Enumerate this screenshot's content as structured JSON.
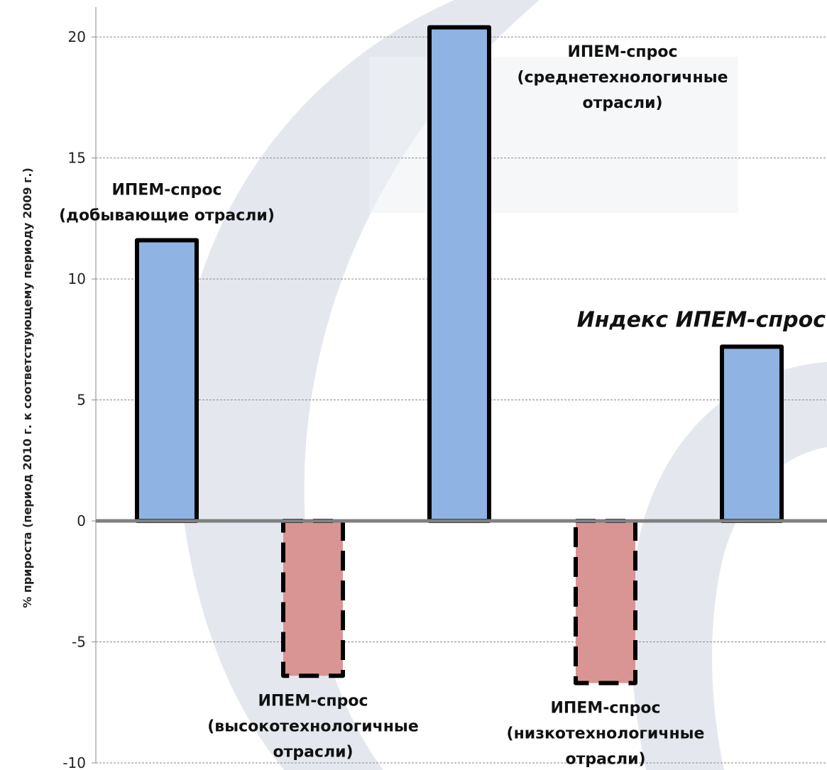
{
  "chart_data": {
    "type": "bar",
    "title": "",
    "xlabel": "",
    "ylabel": "% прироста (период 2010 г. к соответствующему периоду 2009 г.)",
    "ylim": [
      -10,
      21
    ],
    "yticks": [
      -10,
      -5,
      0,
      5,
      10,
      15,
      20
    ],
    "grid": true,
    "categories": [
      {
        "lines": [
          "ИПЕМ-спрос",
          "(добывающие отрасли)"
        ],
        "label_position": "above",
        "style": "bold"
      },
      {
        "lines": [
          "ИПЕМ-спрос",
          "(высокотехнологичные",
          "отрасли)"
        ],
        "label_position": "below",
        "style": "bold"
      },
      {
        "lines": [
          "ИПЕМ-спрос",
          "(среднетехнологичные",
          "отрасли)"
        ],
        "label_position": "right",
        "style": "bold"
      },
      {
        "lines": [
          "ИПЕМ-спрос",
          "(низкотехнологичные",
          "отрасли)"
        ],
        "label_position": "below",
        "style": "bold"
      },
      {
        "lines": [
          "Индекс ИПЕМ-спрос"
        ],
        "label_position": "above-left",
        "style": "bold-italic"
      }
    ],
    "values": [
      11.6,
      -6.4,
      20.4,
      -6.7,
      7.2
    ],
    "colors": {
      "positive_fill": "#8fb4e3",
      "negative_fill": "#d99594",
      "bar_border": "#000000",
      "zero_line": "#808080",
      "grid": "#8a8a8a",
      "watermark": "#e4e8ee"
    }
  }
}
